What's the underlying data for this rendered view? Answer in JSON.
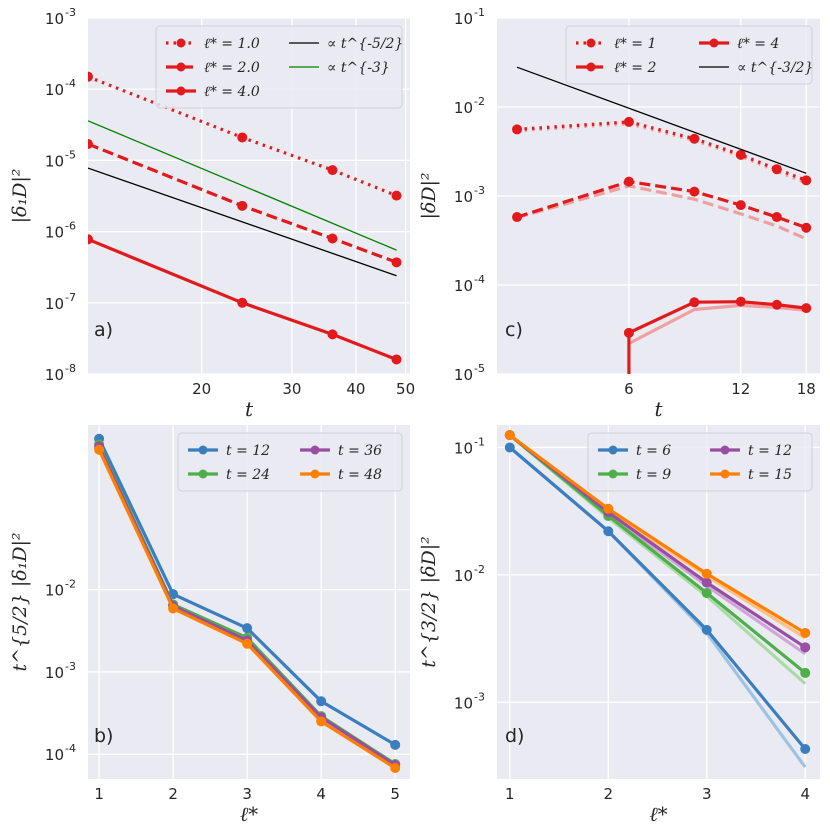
{
  "chart_data": [
    {
      "panel": "a)",
      "type": "line",
      "xscale": "log",
      "yscale": "log",
      "xlim": [
        12,
        51
      ],
      "ylim": [
        1e-08,
        0.001
      ],
      "xlabel": "t",
      "ylabel": "|δ₁D|²",
      "xticks": [
        20,
        30,
        40,
        50
      ],
      "xtick_labels": [
        "20",
        "30",
        "40",
        "50"
      ],
      "yticks": [
        1e-08,
        1e-07,
        1e-06,
        1e-05,
        0.0001,
        0.001
      ],
      "ytick_labels": [
        [
          "10",
          "-8"
        ],
        [
          "10",
          "-7"
        ],
        [
          "10",
          "-6"
        ],
        [
          "10",
          "-5"
        ],
        [
          "10",
          "-4"
        ],
        [
          "10",
          "-3"
        ]
      ],
      "legend": {
        "position": "top-right",
        "columns": 2
      },
      "series": [
        {
          "name": "ℓ* = 1.0",
          "color": "#e31a1c",
          "dash": "dotted",
          "markers": true,
          "x": [
            12,
            24,
            36,
            48
          ],
          "y": [
            0.00015,
            2.1e-05,
            7.3e-06,
            3.2e-06
          ]
        },
        {
          "name": "ℓ* = 2.0",
          "color": "#e31a1c",
          "dash": "dashed",
          "markers": true,
          "x": [
            12,
            24,
            36,
            48
          ],
          "y": [
            1.7e-05,
            2.3e-06,
            8e-07,
            3.7e-07
          ]
        },
        {
          "name": "ℓ* = 4.0",
          "color": "#e31a1c",
          "dash": "solid",
          "markers": true,
          "x": [
            12,
            24,
            36,
            48
          ],
          "y": [
            7.8e-07,
            1e-07,
            3.6e-08,
            1.6e-08
          ]
        },
        {
          "name": "∝ t^{-5/2}",
          "color": "#000000",
          "dash": "solid",
          "thin": true,
          "x": [
            12,
            48
          ],
          "y": [
            7.8e-06,
            2.4e-07
          ]
        },
        {
          "name": "∝ t^{-3}",
          "color": "#008000",
          "dash": "solid",
          "thin": true,
          "x": [
            12,
            48
          ],
          "y": [
            3.6e-05,
            5.5e-07
          ]
        }
      ]
    },
    {
      "panel": "c)",
      "type": "line",
      "xscale": "log",
      "yscale": "log",
      "xlim": [
        2.65,
        19.6
      ],
      "ylim": [
        1e-05,
        0.1
      ],
      "xlabel": "t",
      "ylabel": "|δD|²",
      "xticks": [
        6,
        12,
        18
      ],
      "xtick_labels": [
        "6",
        "12",
        "18"
      ],
      "yticks": [
        1e-05,
        0.0001,
        0.001,
        0.01,
        0.1
      ],
      "ytick_labels": [
        [
          "10",
          "-5"
        ],
        [
          "10",
          "-4"
        ],
        [
          "10",
          "-3"
        ],
        [
          "10",
          "-2"
        ],
        [
          "10",
          "-1"
        ]
      ],
      "legend": {
        "position": "top-right",
        "columns": 2
      },
      "series": [
        {
          "name": "ℓ* = 1",
          "color": "#e31a1c",
          "dash": "dotted",
          "markers": true,
          "x": [
            3,
            6,
            9,
            12,
            15,
            18
          ],
          "y": [
            0.0056,
            0.0068,
            0.0044,
            0.0029,
            0.002,
            0.0015
          ]
        },
        {
          "name": "ℓ* = 2",
          "color": "#e31a1c",
          "dash": "dashed",
          "markers": true,
          "x": [
            3,
            6,
            9,
            12,
            15,
            18
          ],
          "y": [
            0.00058,
            0.00145,
            0.00112,
            0.00079,
            0.00058,
            0.00044
          ]
        },
        {
          "name": "ℓ* = 4",
          "color": "#e31a1c",
          "dash": "solid",
          "markers": true,
          "x": [
            6,
            9,
            12,
            15,
            18
          ],
          "y": [
            2.9e-05,
            6.4e-05,
            6.5e-05,
            6e-05,
            5.5e-05
          ]
        },
        {
          "name": "∝ t^{-3/2}",
          "color": "#000000",
          "dash": "solid",
          "thin": true,
          "x": [
            3,
            18
          ],
          "y": [
            0.028,
            0.0018
          ]
        },
        {
          "name": "",
          "color": "#eea0a0",
          "dash": "dashed",
          "x": [
            3,
            6,
            9,
            12,
            15,
            18
          ],
          "y": [
            0.00057,
            0.0013,
            0.00092,
            0.00063,
            0.00046,
            0.00033
          ]
        },
        {
          "name": "",
          "color": "#f0a0a0",
          "dash": "solid",
          "x": [
            6,
            9,
            12,
            15,
            18
          ],
          "y": [
            2.2e-05,
            5.3e-05,
            5.9e-05,
            5.6e-05,
            5.2e-05
          ]
        },
        {
          "name": "",
          "color": "#f0a0a0",
          "dash": "dotted",
          "x": [
            3,
            6,
            9,
            12,
            15,
            18
          ],
          "y": [
            0.0054,
            0.0065,
            0.0042,
            0.0028,
            0.0019,
            0.0014
          ]
        }
      ]
    },
    {
      "panel": "b)",
      "type": "line",
      "xscale": "linear",
      "yscale": "log",
      "xlim": [
        0.85,
        5.2
      ],
      "ylim": [
        5e-05,
        1.0
      ],
      "xlabel": "ℓ*",
      "ylabel": "t^{5/2} |δ₁D|²",
      "xticks": [
        1,
        2,
        3,
        4,
        5
      ],
      "xtick_labels": [
        "1",
        "2",
        "3",
        "4",
        "5"
      ],
      "yticks": [
        0.0001,
        0.001,
        0.01
      ],
      "ytick_labels": [
        [
          "10",
          "-4"
        ],
        [
          "10",
          "-3"
        ],
        [
          "10",
          "-2"
        ]
      ],
      "legend": {
        "position": "top-right",
        "columns": 2
      },
      "series": [
        {
          "name": "t = 12",
          "color": "#3a7ebf",
          "markers": true,
          "x": [
            1,
            2,
            3,
            4,
            5
          ],
          "y": [
            0.68,
            0.0088,
            0.0034,
            0.00044,
            0.00013
          ]
        },
        {
          "name": "t = 24",
          "color": "#4daf4a",
          "markers": true,
          "x": [
            1,
            2,
            3,
            4,
            5
          ],
          "y": [
            0.58,
            0.0066,
            0.0026,
            0.00029,
            7.6e-05
          ]
        },
        {
          "name": "t = 36",
          "color": "#984ea3",
          "markers": true,
          "x": [
            1,
            2,
            3,
            4,
            5
          ],
          "y": [
            0.55,
            0.0063,
            0.0024,
            0.00028,
            7.4e-05
          ]
        },
        {
          "name": "t = 48",
          "color": "#ff7f00",
          "markers": true,
          "x": [
            1,
            2,
            3,
            4,
            5
          ],
          "y": [
            0.5,
            0.0059,
            0.0022,
            0.00025,
            6.8e-05
          ]
        }
      ]
    },
    {
      "panel": "d)",
      "type": "line",
      "xscale": "linear",
      "yscale": "log",
      "xlim": [
        0.87,
        4.15
      ],
      "ylim": [
        0.00025,
        0.15
      ],
      "xlabel": "ℓ*",
      "ylabel": "t^{3/2} |δD|²",
      "xticks": [
        1,
        2,
        3,
        4
      ],
      "xtick_labels": [
        "1",
        "2",
        "3",
        "4"
      ],
      "yticks": [
        0.001,
        0.01,
        0.1
      ],
      "ytick_labels": [
        [
          "10",
          "-3"
        ],
        [
          "10",
          "-2"
        ],
        [
          "10",
          "-1"
        ]
      ],
      "legend": {
        "position": "top-right",
        "columns": 2
      },
      "series": [
        {
          "name": "t = 6",
          "color": "#3a7ebf",
          "markers": true,
          "x": [
            1,
            2,
            3,
            4
          ],
          "y": [
            0.1,
            0.022,
            0.0037,
            0.00043
          ]
        },
        {
          "name": "t = 9",
          "color": "#4daf4a",
          "markers": true,
          "x": [
            1,
            2,
            3,
            4
          ],
          "y": [
            0.125,
            0.029,
            0.0072,
            0.0017
          ]
        },
        {
          "name": "t = 12",
          "color": "#984ea3",
          "markers": true,
          "x": [
            1,
            2,
            3,
            4
          ],
          "y": [
            0.125,
            0.031,
            0.0087,
            0.0027
          ]
        },
        {
          "name": "t = 15",
          "color": "#ff7f00",
          "markers": true,
          "x": [
            1,
            2,
            3,
            4
          ],
          "y": [
            0.125,
            0.033,
            0.0102,
            0.0035
          ]
        },
        {
          "name": "",
          "color": "#9ec2e3",
          "x": [
            1,
            2,
            3,
            4
          ],
          "y": [
            0.1,
            0.022,
            0.0035,
            0.00031
          ]
        },
        {
          "name": "",
          "color": "#a9dba6",
          "x": [
            1,
            2,
            3,
            4
          ],
          "y": [
            0.125,
            0.028,
            0.0068,
            0.0014
          ]
        },
        {
          "name": "",
          "color": "#cfa6d5",
          "x": [
            1,
            2,
            3,
            4
          ],
          "y": [
            0.125,
            0.03,
            0.0082,
            0.0024
          ]
        },
        {
          "name": "",
          "color": "#ffc085",
          "x": [
            1,
            2,
            3,
            4
          ],
          "y": [
            0.125,
            0.032,
            0.0098,
            0.0032
          ]
        }
      ]
    }
  ]
}
